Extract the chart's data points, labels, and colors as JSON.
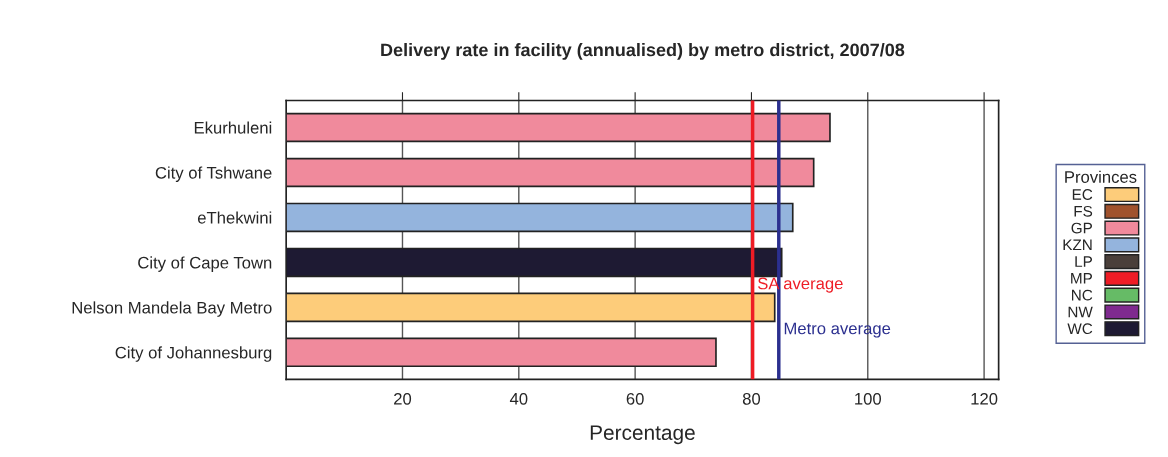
{
  "chart_data": {
    "type": "bar",
    "orientation": "horizontal",
    "title": "Delivery rate in facility (annualised) by metro district, 2007/08",
    "xlabel": "Percentage",
    "categories": [
      "Ekurhuleni",
      "City of Tshwane",
      "eThekwini",
      "City of Cape Town",
      "Nelson Mandela Bay Metro",
      "City of Johannesburg"
    ],
    "series": [
      {
        "name": "EC",
        "color": "#fdcc7a",
        "values": [
          null,
          null,
          null,
          null,
          84.0,
          null
        ]
      },
      {
        "name": "FS",
        "color": "#a0522d",
        "values": [
          null,
          null,
          null,
          null,
          null,
          null
        ]
      },
      {
        "name": "GP",
        "color": "#f08a9c",
        "values": [
          93.5,
          90.7,
          null,
          null,
          null,
          73.9
        ]
      },
      {
        "name": "KZN",
        "color": "#94b4dd",
        "values": [
          null,
          null,
          87.1,
          null,
          null,
          null
        ]
      },
      {
        "name": "LP",
        "color": "#4a3f3a",
        "values": [
          null,
          null,
          null,
          null,
          null,
          null
        ]
      },
      {
        "name": "MP",
        "color": "#ee1c25",
        "values": [
          null,
          null,
          null,
          null,
          null,
          null
        ]
      },
      {
        "name": "NC",
        "color": "#66bb66",
        "values": [
          null,
          null,
          null,
          null,
          null,
          null
        ]
      },
      {
        "name": "NW",
        "color": "#7f2a8f",
        "values": [
          null,
          null,
          null,
          null,
          null,
          null
        ]
      },
      {
        "name": "WC",
        "color": "#1e1a33",
        "values": [
          null,
          null,
          null,
          85.2,
          null,
          null
        ]
      }
    ],
    "legend_title": "Provinces",
    "legend": "right",
    "xlim": [
      0,
      122.5
    ],
    "xticks": [
      20,
      40,
      60,
      80,
      100,
      120
    ],
    "grid": "x",
    "ref_lines": [
      {
        "axis": "x",
        "value": 80.2,
        "label": "SA average",
        "color": "#ee1c25"
      },
      {
        "axis": "x",
        "value": 84.7,
        "label": "Metro average",
        "color": "#2b2f8f"
      }
    ]
  }
}
